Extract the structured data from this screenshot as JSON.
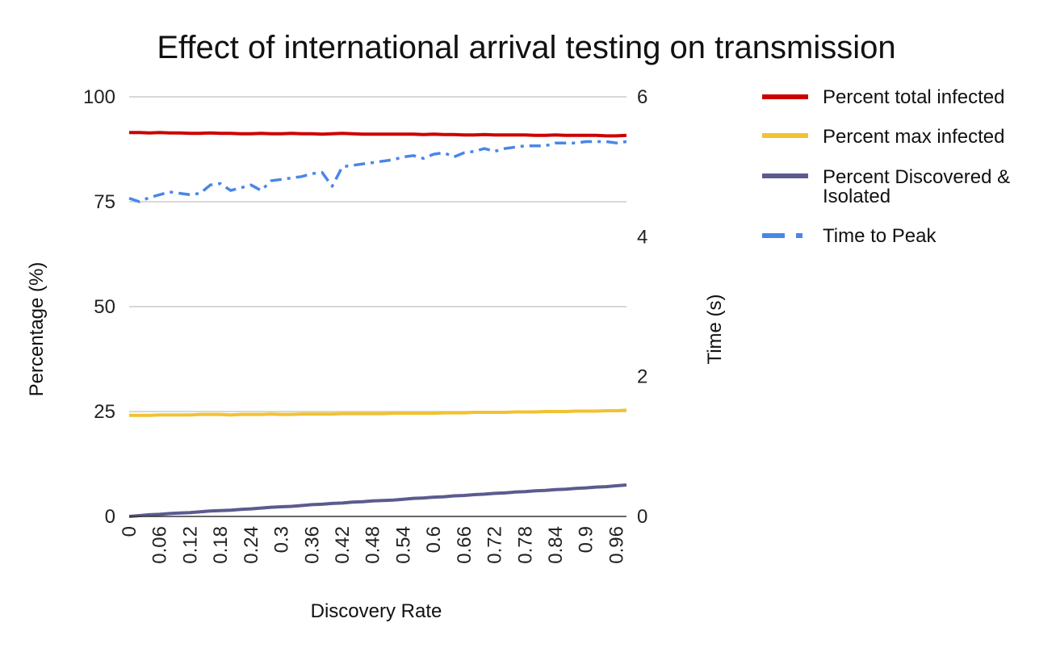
{
  "chart_data": {
    "type": "line",
    "title": "Effect of international arrival testing on transmission",
    "xlabel": "Discovery Rate",
    "ylabel": "Percentage (%)",
    "y2label": "Time (s)",
    "ylim": [
      0,
      100
    ],
    "y2lim": [
      0,
      6
    ],
    "yticks": [
      "0",
      "25",
      "50",
      "75",
      "100"
    ],
    "y2ticks": [
      "0",
      "2",
      "4",
      "6"
    ],
    "x": [
      0,
      0.02,
      0.04,
      0.06,
      0.08,
      0.1,
      0.12,
      0.14,
      0.16,
      0.18,
      0.2,
      0.22,
      0.24,
      0.26,
      0.28,
      0.3,
      0.32,
      0.34,
      0.36,
      0.38,
      0.4,
      0.42,
      0.44,
      0.46,
      0.48,
      0.5,
      0.52,
      0.54,
      0.56,
      0.58,
      0.6,
      0.62,
      0.64,
      0.66,
      0.68,
      0.7,
      0.72,
      0.74,
      0.76,
      0.78,
      0.8,
      0.82,
      0.84,
      0.86,
      0.88,
      0.9,
      0.92,
      0.94,
      0.96,
      0.98
    ],
    "xtick_labels": [
      "0",
      "0.06",
      "0.12",
      "0.18",
      "0.24",
      "0.3",
      "0.36",
      "0.42",
      "0.48",
      "0.54",
      "0.6",
      "0.66",
      "0.72",
      "0.78",
      "0.84",
      "0.9",
      "0.96"
    ],
    "grid": true,
    "legend_position": "right",
    "series": [
      {
        "name": "Percent total infected",
        "axis": "left",
        "color": "#cc0000",
        "style": "solid",
        "values": [
          91.5,
          91.5,
          91.4,
          91.5,
          91.4,
          91.4,
          91.3,
          91.3,
          91.4,
          91.3,
          91.3,
          91.2,
          91.2,
          91.3,
          91.2,
          91.2,
          91.3,
          91.2,
          91.2,
          91.1,
          91.2,
          91.3,
          91.2,
          91.1,
          91.1,
          91.1,
          91.1,
          91.1,
          91.1,
          91.0,
          91.1,
          91.0,
          91.0,
          90.9,
          90.9,
          91.0,
          90.9,
          90.9,
          90.9,
          90.9,
          90.8,
          90.8,
          90.9,
          90.8,
          90.8,
          90.8,
          90.8,
          90.7,
          90.7,
          90.8
        ]
      },
      {
        "name": "Percent max infected",
        "axis": "left",
        "color": "#f1c232",
        "style": "solid",
        "values": [
          24.1,
          24.1,
          24.1,
          24.2,
          24.2,
          24.2,
          24.2,
          24.3,
          24.3,
          24.3,
          24.2,
          24.3,
          24.3,
          24.3,
          24.4,
          24.3,
          24.3,
          24.4,
          24.4,
          24.4,
          24.4,
          24.5,
          24.5,
          24.5,
          24.5,
          24.5,
          24.6,
          24.6,
          24.6,
          24.6,
          24.6,
          24.7,
          24.7,
          24.7,
          24.8,
          24.8,
          24.8,
          24.8,
          24.9,
          24.9,
          24.9,
          25.0,
          25.0,
          25.0,
          25.1,
          25.1,
          25.1,
          25.2,
          25.2,
          25.3
        ]
      },
      {
        "name": "Percent Discovered & Isolated",
        "axis": "left",
        "color": "#5b5b8f",
        "style": "solid",
        "values": [
          0.0,
          0.2,
          0.4,
          0.5,
          0.7,
          0.8,
          0.9,
          1.1,
          1.3,
          1.4,
          1.5,
          1.7,
          1.8,
          2.0,
          2.2,
          2.3,
          2.4,
          2.6,
          2.8,
          2.9,
          3.1,
          3.2,
          3.4,
          3.5,
          3.7,
          3.8,
          3.9,
          4.1,
          4.3,
          4.4,
          4.6,
          4.7,
          4.9,
          5.0,
          5.2,
          5.3,
          5.5,
          5.6,
          5.8,
          5.9,
          6.1,
          6.2,
          6.4,
          6.5,
          6.7,
          6.8,
          7.0,
          7.1,
          7.3,
          7.5
        ]
      },
      {
        "name": "Time to Peak",
        "axis": "right",
        "color": "#4a86e8",
        "style": "dash-dot",
        "values": [
          4.55,
          4.5,
          4.56,
          4.6,
          4.64,
          4.62,
          4.6,
          4.62,
          4.74,
          4.76,
          4.66,
          4.7,
          4.74,
          4.66,
          4.8,
          4.82,
          4.84,
          4.86,
          4.9,
          4.92,
          4.72,
          5.0,
          5.02,
          5.04,
          5.06,
          5.08,
          5.1,
          5.14,
          5.16,
          5.12,
          5.18,
          5.2,
          5.14,
          5.2,
          5.22,
          5.26,
          5.22,
          5.26,
          5.28,
          5.3,
          5.3,
          5.3,
          5.34,
          5.34,
          5.34,
          5.36,
          5.36,
          5.36,
          5.34,
          5.36
        ]
      }
    ]
  }
}
